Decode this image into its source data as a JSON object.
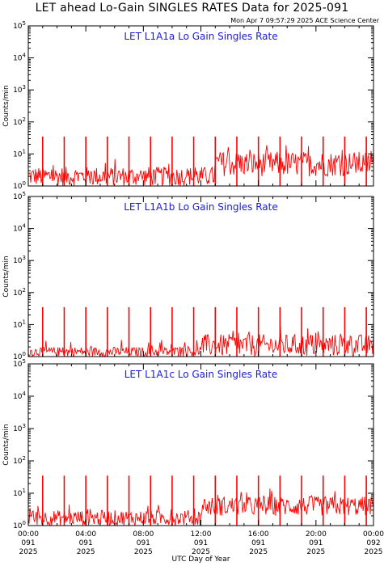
{
  "header": {
    "title": "LET ahead Lo-Gain SINGLES RATES Data for 2025-091",
    "timestamp": "Mon Apr  7 09:57:29 2025 ACE Science Center"
  },
  "colors": {
    "series": "#ff0000",
    "panel_title": "#1a1adc",
    "axes": "#000000"
  },
  "chart_data": [
    {
      "type": "line",
      "title": "LET L1A1a Lo Gain Singles Rate",
      "ylabel": "Counts/min",
      "xlabel": "UTC Day of Year",
      "yscale": "log",
      "ylim": [
        1,
        100000
      ],
      "xlim_hours": [
        0,
        24
      ],
      "spike_hours": [
        1.0,
        2.5,
        4.0,
        5.5,
        7.0,
        8.5,
        10.0,
        11.5,
        13.0,
        14.5,
        16.0,
        17.5,
        19.0,
        20.5,
        22.0,
        23.5
      ],
      "spike_value": 35,
      "baseline_segments": [
        {
          "from_hour": 0,
          "to_hour": 13,
          "typical_range": [
            1,
            4
          ]
        },
        {
          "from_hour": 13,
          "to_hour": 24,
          "typical_range": [
            2,
            12
          ]
        }
      ]
    },
    {
      "type": "line",
      "title": "LET L1A1b Lo Gain Singles Rate",
      "ylabel": "Counts/min",
      "xlabel": "UTC Day of Year",
      "yscale": "log",
      "ylim": [
        1,
        100000
      ],
      "xlim_hours": [
        0,
        24
      ],
      "spike_hours": [
        1.0,
        2.5,
        4.0,
        5.5,
        7.0,
        8.5,
        10.0,
        11.5,
        13.0,
        14.5,
        16.0,
        17.5,
        19.0,
        20.5,
        22.0,
        23.5
      ],
      "spike_value": 35,
      "baseline_segments": [
        {
          "from_hour": 0,
          "to_hour": 12,
          "typical_range": [
            1,
            2
          ]
        },
        {
          "from_hour": 12,
          "to_hour": 24,
          "typical_range": [
            1,
            5
          ]
        }
      ]
    },
    {
      "type": "line",
      "title": "LET L1A1c Lo Gain Singles Rate",
      "ylabel": "Counts/min",
      "xlabel": "UTC Day of Year",
      "yscale": "log",
      "ylim": [
        1,
        100000
      ],
      "xlim_hours": [
        0,
        24
      ],
      "spike_hours": [
        1.0,
        2.5,
        4.0,
        5.5,
        7.0,
        8.5,
        10.0,
        11.5,
        13.0,
        14.5,
        16.0,
        17.5,
        19.0,
        20.5,
        22.0,
        23.5
      ],
      "spike_value": 35,
      "baseline_segments": [
        {
          "from_hour": 0,
          "to_hour": 12,
          "typical_range": [
            1,
            3
          ]
        },
        {
          "from_hour": 12,
          "to_hour": 24,
          "typical_range": [
            2,
            8
          ]
        }
      ]
    }
  ],
  "x_axis": {
    "label": "UTC Day of Year",
    "ticks": [
      {
        "hour": 0,
        "time": "00:00",
        "doy": "091",
        "year": "2025"
      },
      {
        "hour": 4,
        "time": "04:00",
        "doy": "091",
        "year": "2025"
      },
      {
        "hour": 8,
        "time": "08:00",
        "doy": "091",
        "year": "2025"
      },
      {
        "hour": 12,
        "time": "12:00",
        "doy": "091",
        "year": "2025"
      },
      {
        "hour": 16,
        "time": "16:00",
        "doy": "091",
        "year": "2025"
      },
      {
        "hour": 20,
        "time": "20:00",
        "doy": "091",
        "year": "2025"
      },
      {
        "hour": 24,
        "time": "00:00",
        "doy": "092",
        "year": "2025"
      }
    ]
  },
  "y_axis": {
    "ticks": [
      {
        "base": "10",
        "exp": "0",
        "value": 1
      },
      {
        "base": "10",
        "exp": "1",
        "value": 10
      },
      {
        "base": "10",
        "exp": "2",
        "value": 100
      },
      {
        "base": "10",
        "exp": "3",
        "value": 1000
      },
      {
        "base": "10",
        "exp": "4",
        "value": 10000
      },
      {
        "base": "10",
        "exp": "5",
        "value": 100000
      }
    ]
  }
}
